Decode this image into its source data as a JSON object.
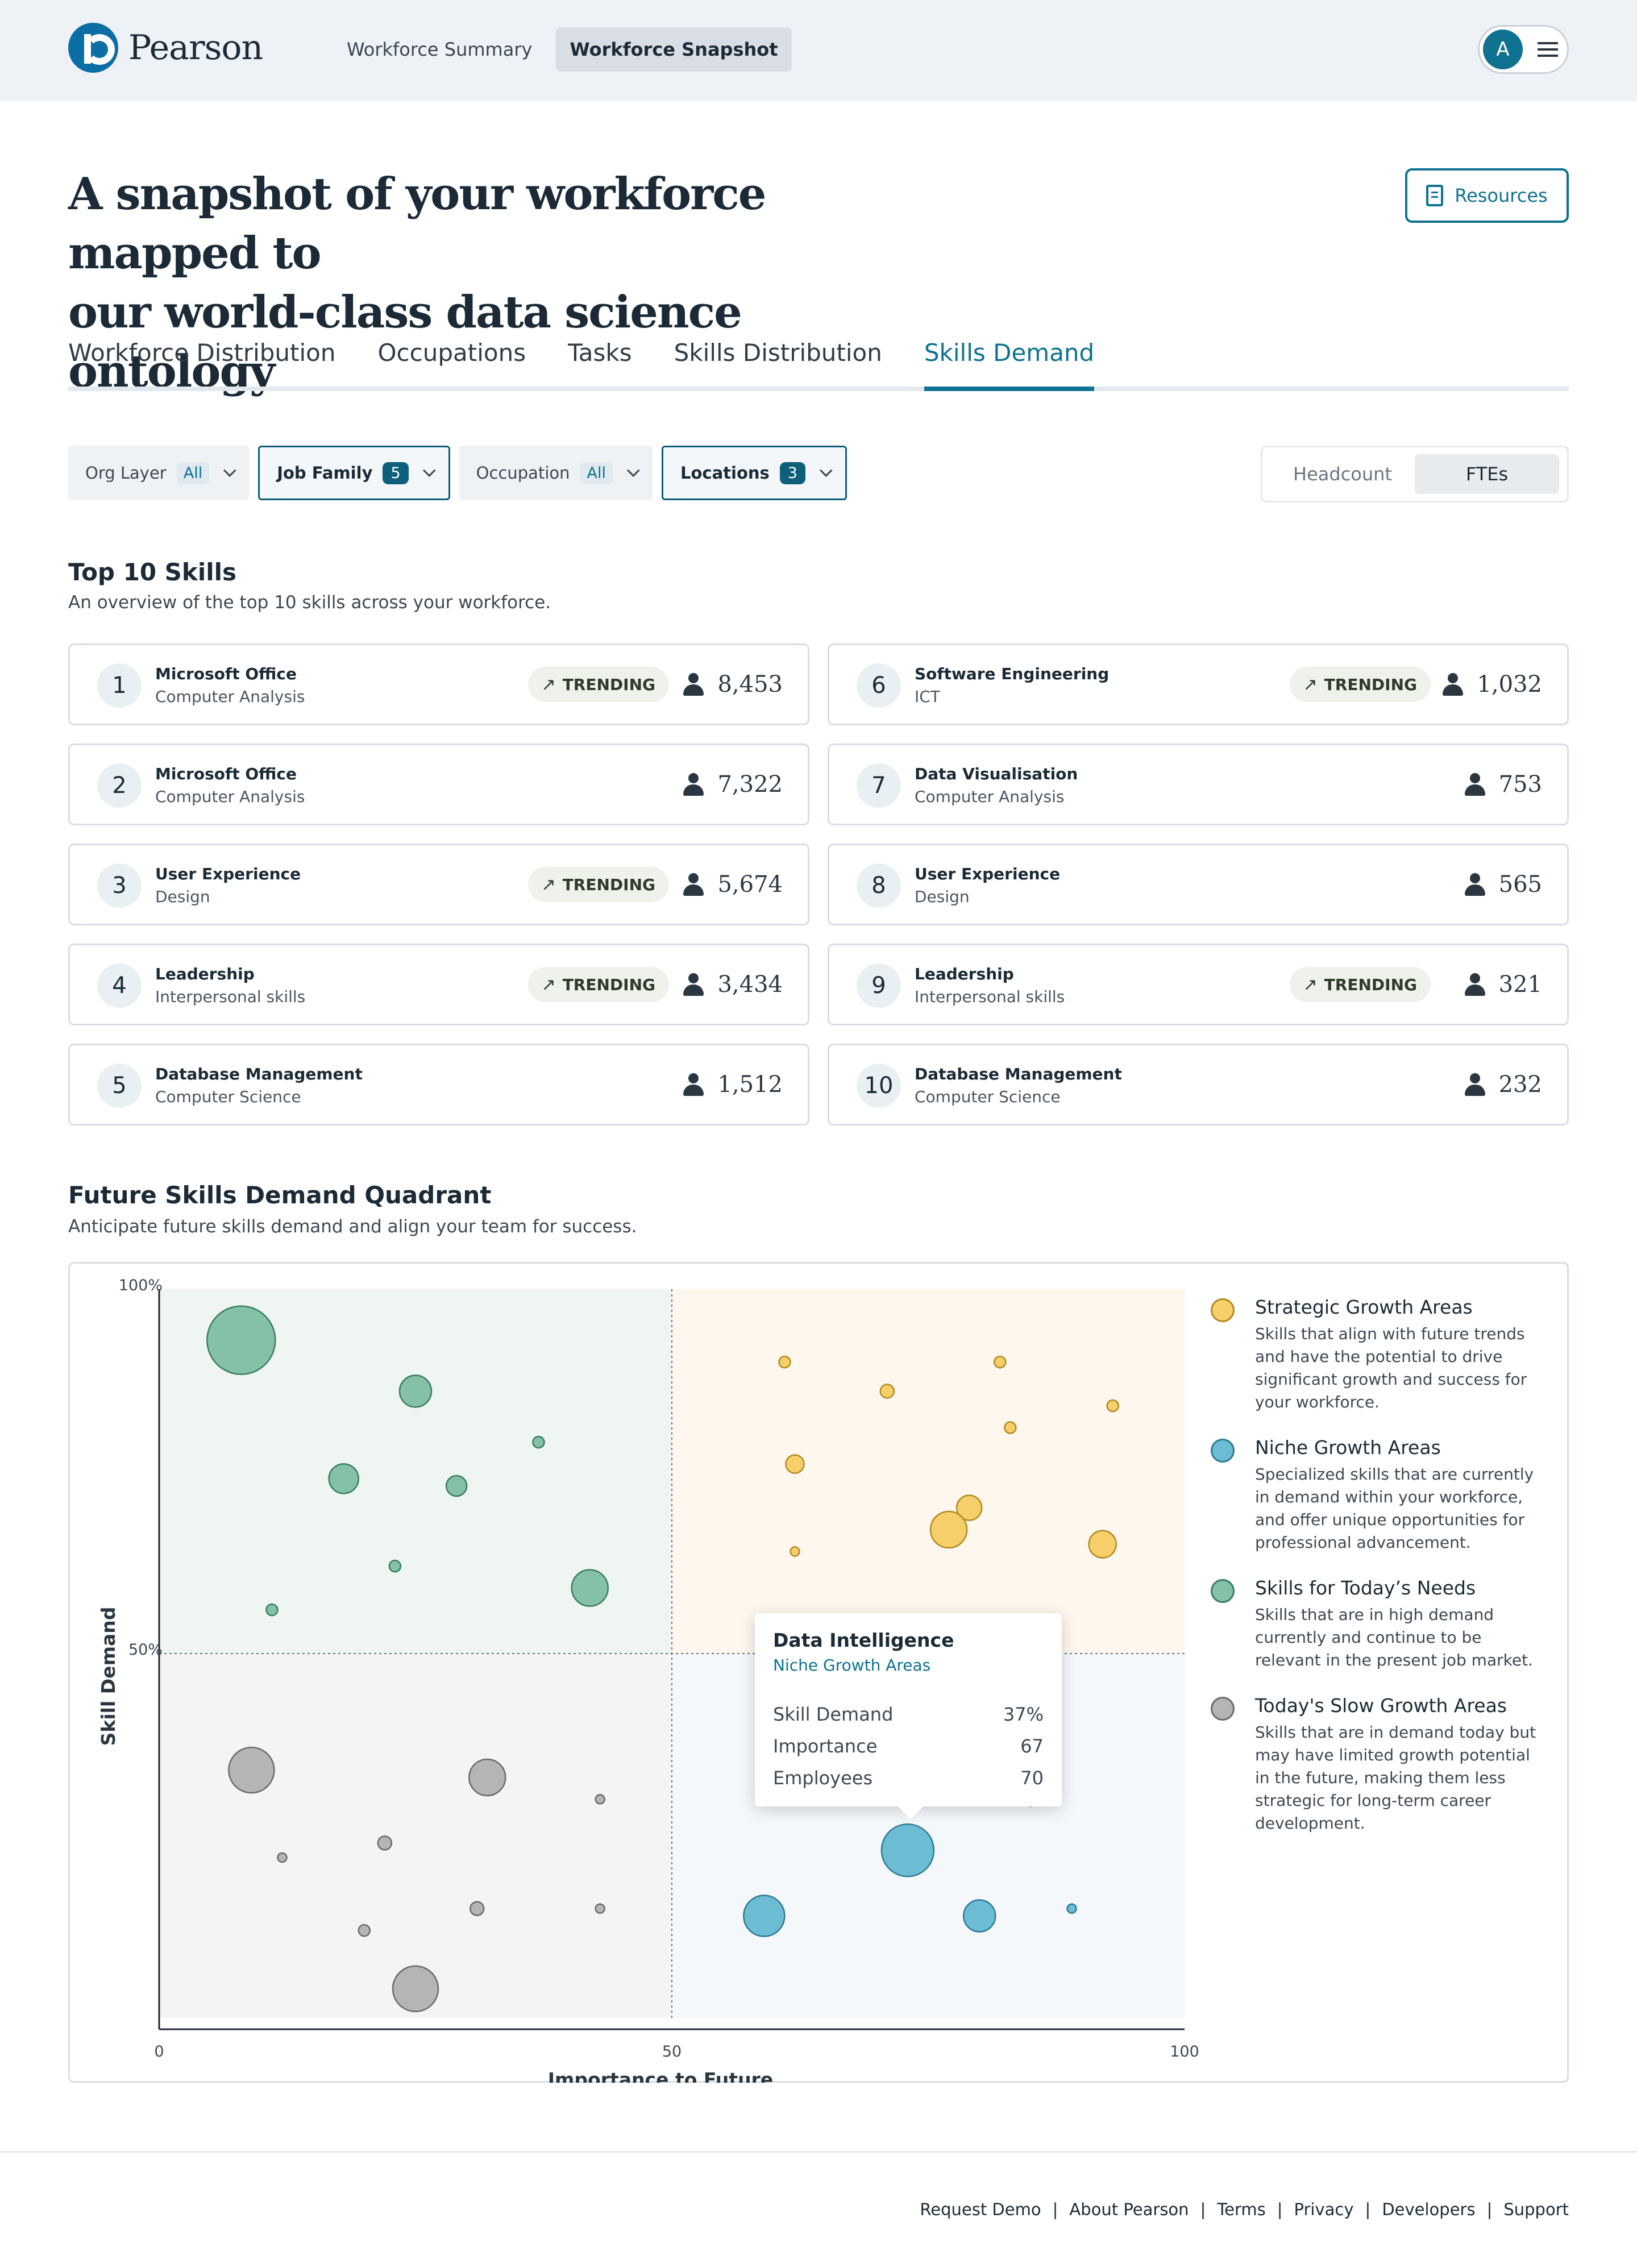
{
  "brand": {
    "name": "Pearson"
  },
  "nav": {
    "items": [
      {
        "label": "Workforce Summary",
        "active": false
      },
      {
        "label": "Workforce Snapshot",
        "active": true
      }
    ]
  },
  "user": {
    "initial": "A"
  },
  "hero": {
    "title_line1": "A snapshot of your workforce mapped to",
    "title_line2": "our world-class data science ontology",
    "resources_label": "Resources"
  },
  "tabs": [
    {
      "label": "Workforce Distribution"
    },
    {
      "label": "Occupations"
    },
    {
      "label": "Tasks"
    },
    {
      "label": "Skills Distribution"
    },
    {
      "label": "Skills Demand",
      "active": true
    }
  ],
  "filters": {
    "org_layer": {
      "label": "Org Layer",
      "value": "All"
    },
    "job_family": {
      "label": "Job Family",
      "value": "5"
    },
    "occupation": {
      "label": "Occupation",
      "value": "All"
    },
    "locations": {
      "label": "Locations",
      "value": "3"
    }
  },
  "toggle": {
    "headcount": "Headcount",
    "ftes": "FTEs",
    "selected": "FTEs"
  },
  "top_skills": {
    "title": "Top 10 Skills",
    "subtitle": "An overview of the top 10 skills across your workforce.",
    "trending_label": "TRENDING",
    "items": [
      {
        "rank": "1",
        "name": "Microsoft Office",
        "category": "Computer Analysis",
        "trending": true,
        "count": "8,453"
      },
      {
        "rank": "2",
        "name": "Microsoft Office",
        "category": "Computer Analysis",
        "trending": false,
        "count": "7,322"
      },
      {
        "rank": "3",
        "name": "User Experience",
        "category": "Design",
        "trending": true,
        "count": "5,674"
      },
      {
        "rank": "4",
        "name": "Leadership",
        "category": "Interpersonal skills",
        "trending": true,
        "count": "3,434"
      },
      {
        "rank": "5",
        "name": "Database Management",
        "category": "Computer Science",
        "trending": false,
        "count": "1,512"
      },
      {
        "rank": "6",
        "name": "Software Engineering",
        "category": "ICT",
        "trending": true,
        "count": "1,032"
      },
      {
        "rank": "7",
        "name": "Data Visualisation",
        "category": "Computer Analysis",
        "trending": false,
        "count": "753"
      },
      {
        "rank": "8",
        "name": "User Experience",
        "category": "Design",
        "trending": false,
        "count": "565"
      },
      {
        "rank": "9",
        "name": "Leadership",
        "category": "Interpersonal skills",
        "trending": true,
        "count": "321"
      },
      {
        "rank": "10",
        "name": "Database Management",
        "category": "Computer Science",
        "trending": false,
        "count": "232"
      }
    ]
  },
  "quadrant": {
    "title": "Future Skills Demand Quadrant",
    "subtitle": "Anticipate future skills demand and align your team for success.",
    "legend": [
      {
        "key": "strategic",
        "title": "Strategic Growth Areas",
        "description": "Skills that align with future trends and have the potential to drive significant growth and success for your workforce."
      },
      {
        "key": "niche",
        "title": "Niche Growth Areas",
        "description": "Specialized skills that are currently in demand within your workforce, and offer unique opportunities for professional advancement."
      },
      {
        "key": "today",
        "title": "Skills for Today’s Needs",
        "description": "Skills that are in high demand currently and continue to be relevant in the present job market."
      },
      {
        "key": "slow",
        "title": "Today's Slow Growth Areas",
        "description": "Skills that are in demand today but may have limited growth potential in the future, making them less strategic for long-term career development."
      }
    ],
    "tooltip": {
      "skill": "Data Intelligence",
      "category": "Niche Growth Areas",
      "rows": [
        {
          "label": "Skill Demand",
          "value": "37%"
        },
        {
          "label": "Importance",
          "value": "67"
        },
        {
          "label": "Employees",
          "value": "70"
        }
      ]
    }
  },
  "chart_data": {
    "type": "scatter",
    "xlabel": "Importance to Future",
    "ylabel": "Skill Demand",
    "xlim": [
      0,
      100
    ],
    "ylim": [
      0,
      100
    ],
    "x_ticks": [
      "0",
      "50",
      "100"
    ],
    "y_ticks": [
      "100%",
      "50%"
    ],
    "y_tick_values": [
      100,
      50
    ],
    "divider": {
      "x": 50,
      "y": 50
    },
    "colors": {
      "strategic": {
        "fill": "#f6cf6a",
        "stroke": "#b38a1f",
        "bg": "#fdf7ee"
      },
      "niche": {
        "fill": "#6cbcd4",
        "stroke": "#2d7c96",
        "bg": "#f4f8fb"
      },
      "today": {
        "fill": "#84c1a7",
        "stroke": "#3a7d63",
        "bg": "#eff5f1"
      },
      "slow": {
        "fill": "#b5b5b5",
        "stroke": "#6b6b6b",
        "bg": "#f4f4f4"
      }
    },
    "series": [
      {
        "key": "today",
        "name": "Skills for Today’s Needs",
        "points": [
          {
            "x": 8,
            "y": 93,
            "size": 30
          },
          {
            "x": 25,
            "y": 86,
            "size": 14
          },
          {
            "x": 18,
            "y": 74,
            "size": 13
          },
          {
            "x": 29,
            "y": 73,
            "size": 9
          },
          {
            "x": 37,
            "y": 79,
            "size": 5
          },
          {
            "x": 23,
            "y": 62,
            "size": 5
          },
          {
            "x": 42,
            "y": 59,
            "size": 16
          },
          {
            "x": 11,
            "y": 56,
            "size": 5
          }
        ]
      },
      {
        "key": "strategic",
        "name": "Strategic Growth Areas",
        "points": [
          {
            "x": 61,
            "y": 90,
            "size": 5
          },
          {
            "x": 82,
            "y": 90,
            "size": 5
          },
          {
            "x": 71,
            "y": 86,
            "size": 6
          },
          {
            "x": 93,
            "y": 84,
            "size": 5
          },
          {
            "x": 83,
            "y": 81,
            "size": 5
          },
          {
            "x": 62,
            "y": 76,
            "size": 8
          },
          {
            "x": 79,
            "y": 70,
            "size": 11
          },
          {
            "x": 77,
            "y": 67,
            "size": 16
          },
          {
            "x": 92,
            "y": 65,
            "size": 12
          },
          {
            "x": 62,
            "y": 64,
            "size": 4
          }
        ]
      },
      {
        "key": "slow",
        "name": "Today's Slow Growth Areas",
        "points": [
          {
            "x": 9,
            "y": 34,
            "size": 20
          },
          {
            "x": 32,
            "y": 33,
            "size": 16
          },
          {
            "x": 43,
            "y": 30,
            "size": 4
          },
          {
            "x": 22,
            "y": 24,
            "size": 6
          },
          {
            "x": 12,
            "y": 22,
            "size": 4
          },
          {
            "x": 31,
            "y": 15,
            "size": 6
          },
          {
            "x": 43,
            "y": 15,
            "size": 4
          },
          {
            "x": 20,
            "y": 12,
            "size": 5
          },
          {
            "x": 25,
            "y": 4,
            "size": 20
          }
        ]
      },
      {
        "key": "niche",
        "name": "Niche Growth Areas",
        "points": [
          {
            "x": 85,
            "y": 30,
            "size": 6
          },
          {
            "x": 73,
            "y": 23,
            "size": 23
          },
          {
            "x": 59,
            "y": 14,
            "size": 18
          },
          {
            "x": 80,
            "y": 14,
            "size": 14
          },
          {
            "x": 89,
            "y": 15,
            "size": 4
          }
        ]
      }
    ]
  },
  "footer": {
    "links": [
      "Request Demo",
      "About Pearson",
      "Terms",
      "Privacy",
      "Developers",
      "Support"
    ]
  }
}
